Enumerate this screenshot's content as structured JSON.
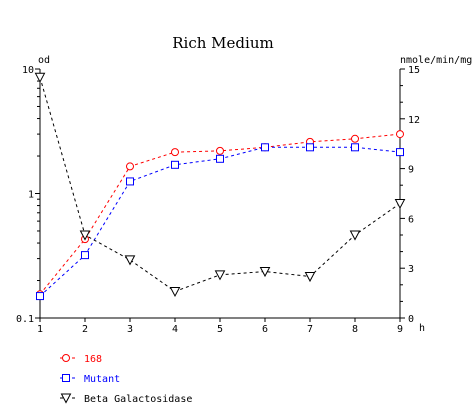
{
  "chart_data": {
    "type": "line",
    "title": "Rich Medium",
    "y_left_label": "od",
    "y_right_label": "nmole/min/mg",
    "x_unit_label": "h",
    "x": [
      1,
      2,
      3,
      4,
      5,
      6,
      7,
      8,
      9
    ],
    "x_ticks": [
      "1",
      "2",
      "3",
      "4",
      "5",
      "6",
      "7",
      "8",
      "9"
    ],
    "y_left_scale": "log",
    "y_left_range": [
      0.1,
      10
    ],
    "y_left_ticks": [
      "10",
      "1",
      "0.1"
    ],
    "y_right_range": [
      0,
      15
    ],
    "y_right_ticks": [
      "15",
      "12",
      "9",
      "6",
      "3",
      "0"
    ],
    "grid": false,
    "legend_position": "bottom-left",
    "series": [
      {
        "name": "168",
        "axis": "left",
        "color": "#ff0000",
        "marker": "circle",
        "values": [
          0.155,
          0.43,
          1.65,
          2.15,
          2.2,
          2.35,
          2.6,
          2.75,
          3.0
        ]
      },
      {
        "name": "Mutant",
        "axis": "left",
        "color": "#0000ff",
        "marker": "square",
        "values": [
          0.15,
          0.32,
          1.25,
          1.7,
          1.9,
          2.35,
          2.35,
          2.35,
          2.15
        ]
      },
      {
        "name": "Beta Galactosidase",
        "axis": "right",
        "color": "#000000",
        "marker": "triangle-down",
        "values": [
          14.5,
          5.0,
          3.5,
          1.6,
          2.6,
          2.8,
          2.5,
          5.0,
          6.9
        ]
      }
    ]
  }
}
